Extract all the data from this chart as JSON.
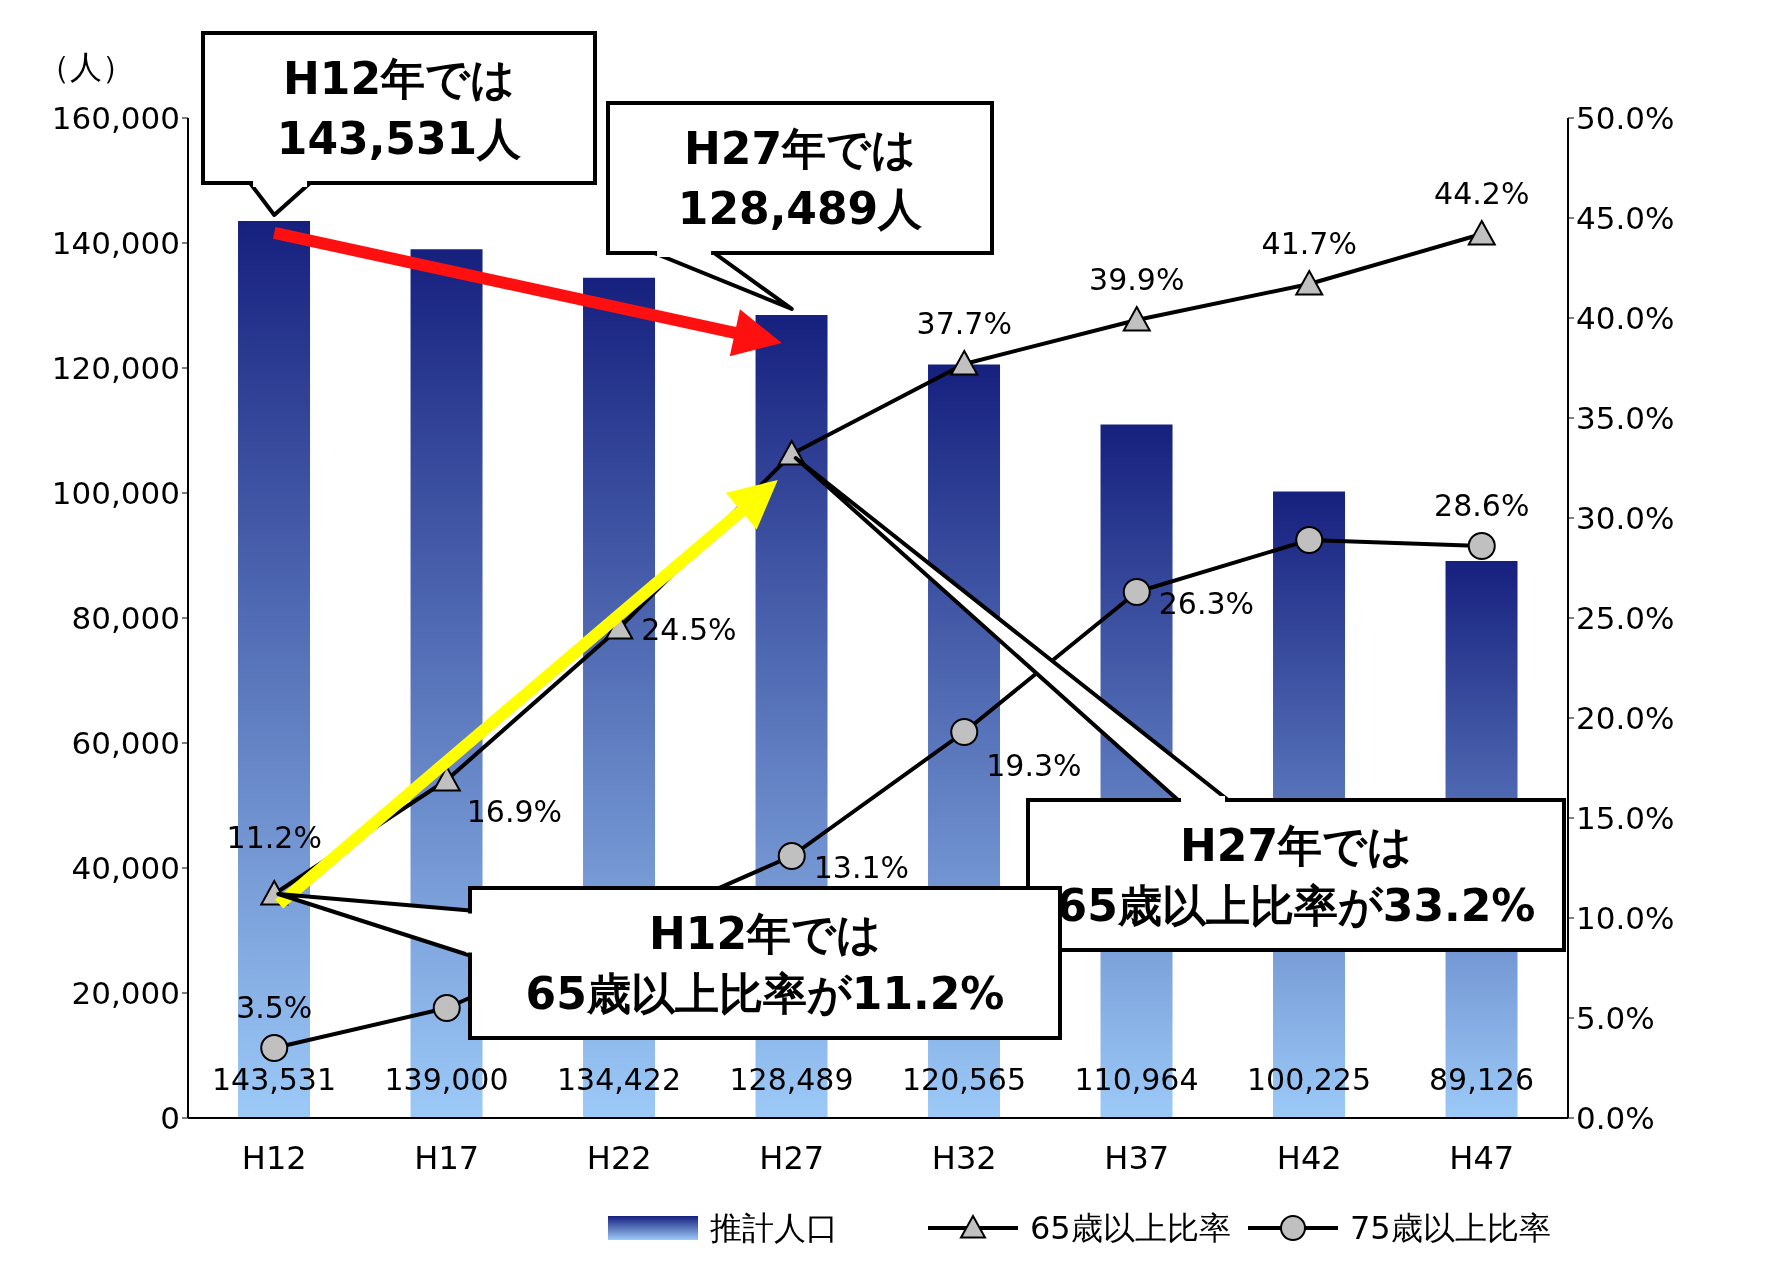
{
  "chart_data": {
    "type": "bar",
    "ylabel": "（人）",
    "categories": [
      "H12",
      "H17",
      "H22",
      "H27",
      "H32",
      "H37",
      "H42",
      "H47"
    ],
    "series": [
      {
        "name": "推計人口",
        "color": "#16207e",
        "values": [
          143531,
          139000,
          134422,
          128489,
          120565,
          110964,
          100225,
          89126
        ],
        "value_labels": [
          "143,531",
          "139,000",
          "134,422",
          "128,489",
          "120,565",
          "110,964",
          "100,225",
          "89,126"
        ]
      },
      {
        "name": "65歳以上比率",
        "type": "line",
        "axis": "y2",
        "color": "#000000",
        "marker": "triangle",
        "values": [
          11.2,
          16.9,
          24.5,
          33.2,
          37.7,
          39.9,
          41.7,
          44.2
        ],
        "value_labels": [
          "11.2%",
          "16.9%",
          "24.5%",
          null,
          "37.7%",
          "39.9%",
          "41.7%",
          "44.2%"
        ]
      },
      {
        "name": "75歳以上比率",
        "type": "line",
        "axis": "y2",
        "color": "#000000",
        "marker": "circle",
        "values": [
          3.5,
          5.5,
          null,
          13.1,
          19.3,
          26.3,
          28.9,
          28.6
        ],
        "value_labels": [
          "3.5%",
          null,
          null,
          "13.1%",
          "19.3%",
          "26.3%",
          null,
          "28.6%"
        ]
      }
    ],
    "ylim": [
      0,
      160000
    ],
    "yticks": [
      0,
      {
        "value": 20000,
        "label": "20,000"
      },
      {
        "value": 40000,
        "label": "40,000"
      },
      {
        "value": 60000,
        "label": "60,000"
      },
      {
        "value": 80000,
        "label": "80,000"
      },
      {
        "value": 100000,
        "label": "100,000"
      },
      {
        "value": 120000,
        "label": "120,000"
      },
      {
        "value": 140000,
        "label": "140,000"
      },
      {
        "value": 160000,
        "label": "160,000"
      }
    ],
    "y2lim": [
      0,
      50
    ],
    "y2ticks": [
      {
        "value": 0,
        "label": "0.0%"
      },
      {
        "value": 5,
        "label": "5.0%"
      },
      {
        "value": 10,
        "label": "10.0%"
      },
      {
        "value": 15,
        "label": "15.0%"
      },
      {
        "value": 20,
        "label": "20.0%"
      },
      {
        "value": 25,
        "label": "25.0%"
      },
      {
        "value": 30,
        "label": "30.0%"
      },
      {
        "value": 35,
        "label": "35.0%"
      },
      {
        "value": 40,
        "label": "40.0%"
      },
      {
        "value": 45,
        "label": "45.0%"
      },
      {
        "value": 50,
        "label": "50.0%"
      }
    ],
    "annotations": [
      "H12年では\n143,531人",
      "H27年では\n128,489人",
      "H27年では\n65歳以上比率が33.2%",
      "H12年では\n65歳以上比率が11.2%"
    ],
    "legend": "bottom right"
  }
}
